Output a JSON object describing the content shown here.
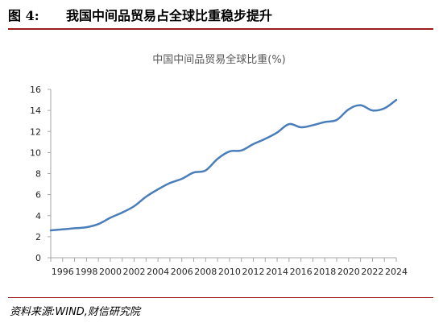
{
  "header": {
    "figure_label": "图 4:",
    "title": "我国中间品贸易占全球比重稳步提升"
  },
  "source": "资料来源:WIND,财信研究院",
  "colors": {
    "line": "#4a7ebb",
    "rule": "#9b1c1c",
    "axis": "#a6a6a6"
  },
  "chart_data": {
    "type": "line",
    "title": "中国中间品贸易全球比重(%)",
    "xlabel": "",
    "ylabel": "",
    "ylim": [
      0,
      16
    ],
    "yticks": [
      "0",
      "2",
      "4",
      "6",
      "8",
      "10",
      "12",
      "14",
      "16"
    ],
    "xticks": [
      "1996",
      "1998",
      "2000",
      "2002",
      "2004",
      "2006",
      "2008",
      "2010",
      "2012",
      "2014",
      "2016",
      "2018",
      "2020",
      "2022",
      "2024"
    ],
    "grid": false,
    "legend": "none",
    "series": [
      {
        "x": [
          1995,
          1996,
          1997,
          1998,
          1999,
          2000,
          2001,
          2002,
          2003,
          2004,
          2005,
          2006,
          2007,
          2008,
          2009,
          2010,
          2011,
          2012,
          2013,
          2014,
          2015,
          2016,
          2017,
          2018,
          2019,
          2020,
          2021,
          2022,
          2023,
          2024
        ],
        "y": [
          2.6,
          2.7,
          2.8,
          2.9,
          3.2,
          3.8,
          4.3,
          4.9,
          5.8,
          6.5,
          7.1,
          7.5,
          8.1,
          8.3,
          9.4,
          10.1,
          10.2,
          10.8,
          11.3,
          11.9,
          12.7,
          12.4,
          12.6,
          12.9,
          13.1,
          14.1,
          14.5,
          14.0,
          14.2,
          15.0
        ]
      }
    ]
  }
}
